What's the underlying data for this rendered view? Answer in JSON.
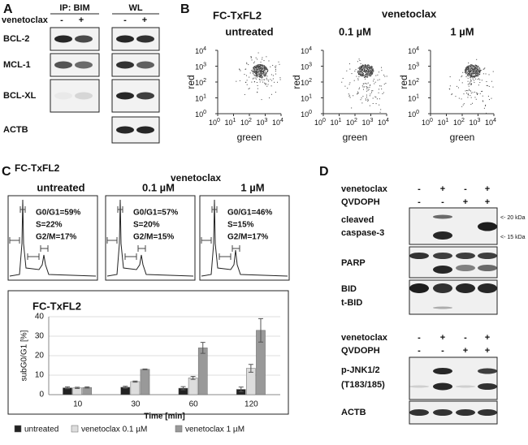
{
  "panel_a": {
    "label": "A",
    "ip_header": "IP: BIM",
    "wl_header": "WL",
    "treatment": "venetoclax",
    "signs": [
      "-",
      "+",
      "-",
      "+"
    ],
    "rows": [
      "BCL-2",
      "MCL-1",
      "BCL-XL",
      "ACTB"
    ]
  },
  "panel_b": {
    "label": "B",
    "cell_line": "FC-TxFL2",
    "treatment": "venetoclax",
    "conditions": [
      "untreated",
      "0.1 µM",
      "1 µM"
    ],
    "x_label": "green",
    "y_label": "red",
    "ticks": [
      {
        "value": 1,
        "label": "10",
        "exp": "0"
      },
      {
        "value": 10,
        "label": "10",
        "exp": "1"
      },
      {
        "value": 100,
        "label": "10",
        "exp": "2"
      },
      {
        "value": 1000,
        "label": "10",
        "exp": "3"
      },
      {
        "value": 10000,
        "label": "10",
        "exp": "4"
      }
    ]
  },
  "panel_c": {
    "label": "C",
    "cell_line": "FC-TxFL2",
    "treatment": "venetoclax",
    "conditions": [
      "untreated",
      "0.1 µM",
      "1 µM"
    ],
    "annotations": [
      [
        "G0/G1=59%",
        "S=22%",
        "G2/M=17%"
      ],
      [
        "G0/G1=57%",
        "S=20%",
        "G2/M=15%"
      ],
      [
        "G0/G1=46%",
        "S=15%",
        "G2/M=17%"
      ]
    ]
  },
  "chart_data": {
    "type": "bar",
    "title": "FC-TxFL2",
    "y_label": "subG0/G1 [%]",
    "x_label": "Time [min]",
    "categories": [
      "10",
      "30",
      "60",
      "120"
    ],
    "series": [
      {
        "name": "untreated",
        "color": "#222222",
        "values": [
          3.5,
          3.8,
          3.3,
          2.7
        ],
        "errors": [
          0.5,
          0.5,
          0.8,
          1.2
        ]
      },
      {
        "name": "venetoclax 0.1 µM",
        "color": "#dddddd",
        "values": [
          3.5,
          6.7,
          8.6,
          13.5
        ],
        "errors": [
          0.3,
          0.3,
          0.8,
          2
        ]
      },
      {
        "name": "venetoclax 1 µM",
        "color": "#999999",
        "values": [
          3.7,
          13,
          24,
          33
        ],
        "errors": [
          0.3,
          0.2,
          2.8,
          6
        ]
      }
    ],
    "ylim": [
      0,
      40
    ],
    "yticks": [
      0,
      10,
      20,
      30,
      40
    ],
    "grid": true
  },
  "panel_d": {
    "label": "D",
    "blot1": {
      "rows": [
        {
          "label": "venetoclax",
          "signs": [
            "-",
            "+",
            "-",
            "+"
          ]
        },
        {
          "label": "QVDOPH",
          "signs": [
            "-",
            "-",
            "+",
            "+"
          ]
        }
      ],
      "proteins": [
        "cleaved",
        "caspase-3",
        "PARP",
        "BID",
        "t-BID"
      ],
      "markers": [
        "<- 20 kDa",
        "<- 15 kDa"
      ]
    },
    "blot2": {
      "rows": [
        {
          "label": "venetoclax",
          "signs": [
            "-",
            "+",
            "-",
            "+"
          ]
        },
        {
          "label": "QVDOPH",
          "signs": [
            "-",
            "-",
            "+",
            "+"
          ]
        }
      ],
      "proteins": [
        "p-JNK1/2",
        "(T183/185)",
        "ACTB"
      ]
    }
  }
}
